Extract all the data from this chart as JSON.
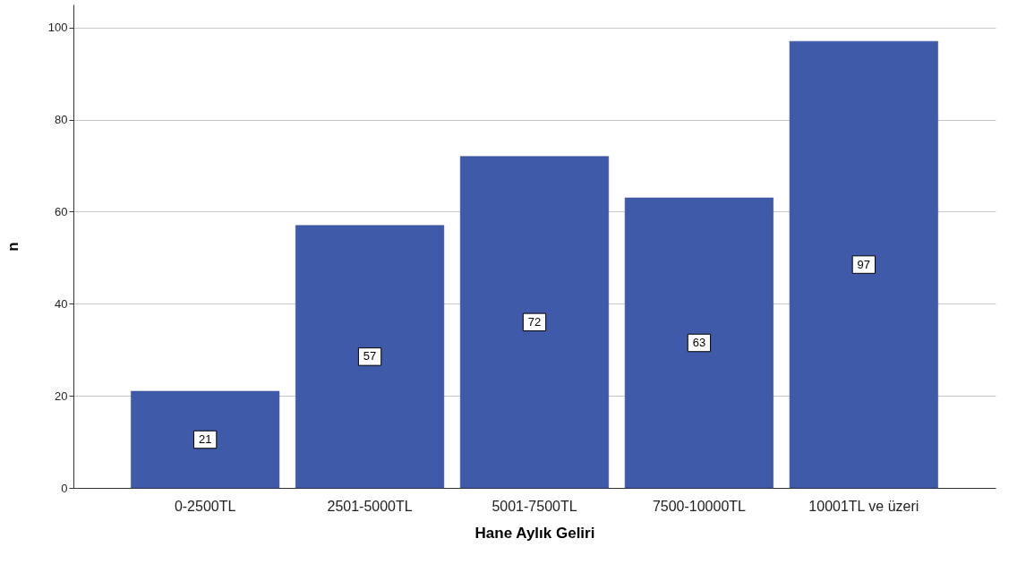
{
  "chart_data": {
    "type": "bar",
    "xlabel": "Hane Aylık Geliri",
    "ylabel": "n",
    "categories": [
      "0-2500TL",
      "2501-5000TL",
      "5001-7500TL",
      "7500-10000TL",
      "10001TL ve üzeri"
    ],
    "values": [
      21,
      57,
      72,
      63,
      97
    ],
    "color": "#3f5aa8",
    "ylim": [
      0,
      105
    ],
    "yticks": [
      0,
      20,
      40,
      60,
      80,
      100
    ],
    "grid": "y",
    "data_labels": true
  }
}
